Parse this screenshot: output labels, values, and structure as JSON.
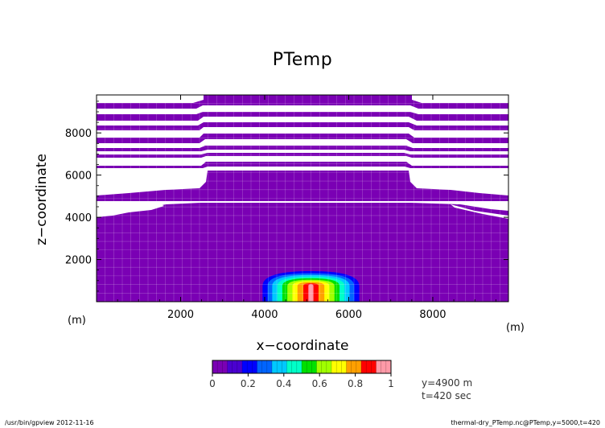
{
  "chart_data": {
    "type": "heatmap",
    "title": "PTemp",
    "xlabel": "x−coordinate",
    "ylabel": "z−coordinate",
    "x_unit": "(m)",
    "z_unit": "(m)",
    "xlim": [
      0,
      9800
    ],
    "zlim": [
      0,
      9800
    ],
    "x_ticks": [
      2000,
      4000,
      6000,
      8000
    ],
    "z_ticks": [
      2000,
      4000,
      6000,
      8000
    ],
    "grid": true,
    "background_value": 0,
    "bubble": {
      "center_x": 5100,
      "center_z": 750,
      "contours": [
        {
          "level": 0.1,
          "half_width_x": 1150,
          "top_z": 1450
        },
        {
          "level": 0.2,
          "half_width_x": 1030,
          "top_z": 1350
        },
        {
          "level": 0.3,
          "half_width_x": 920,
          "top_z": 1270
        },
        {
          "level": 0.4,
          "half_width_x": 800,
          "top_z": 1190
        },
        {
          "level": 0.5,
          "half_width_x": 680,
          "top_z": 1110
        },
        {
          "level": 0.6,
          "half_width_x": 560,
          "top_z": 1040
        },
        {
          "level": 0.7,
          "half_width_x": 440,
          "top_z": 980
        },
        {
          "level": 0.8,
          "half_width_x": 320,
          "top_z": 930
        },
        {
          "level": 0.9,
          "half_width_x": 180,
          "top_z": 870
        },
        {
          "level": 1.0,
          "half_width_x": 60,
          "top_z": 830
        }
      ]
    },
    "colorbar": {
      "ticks": [
        "0",
        "0.2",
        "0.4",
        "0.6",
        "0.8",
        "1"
      ],
      "colors": [
        "#7a00b4",
        "#4a00d0",
        "#0000ff",
        "#0064ff",
        "#00c8ff",
        "#00ffc8",
        "#00e000",
        "#a0ff00",
        "#ffff00",
        "#ffa000",
        "#ff0000",
        "#ff9aa8"
      ]
    },
    "annotations": [
      "y=4900 m",
      "t=420 sec"
    ]
  },
  "footer": {
    "left": "/usr/bin/gpview   2012-11-16",
    "right": "thermal-dry_PTemp.nc@PTemp,y=5000,t=420"
  }
}
